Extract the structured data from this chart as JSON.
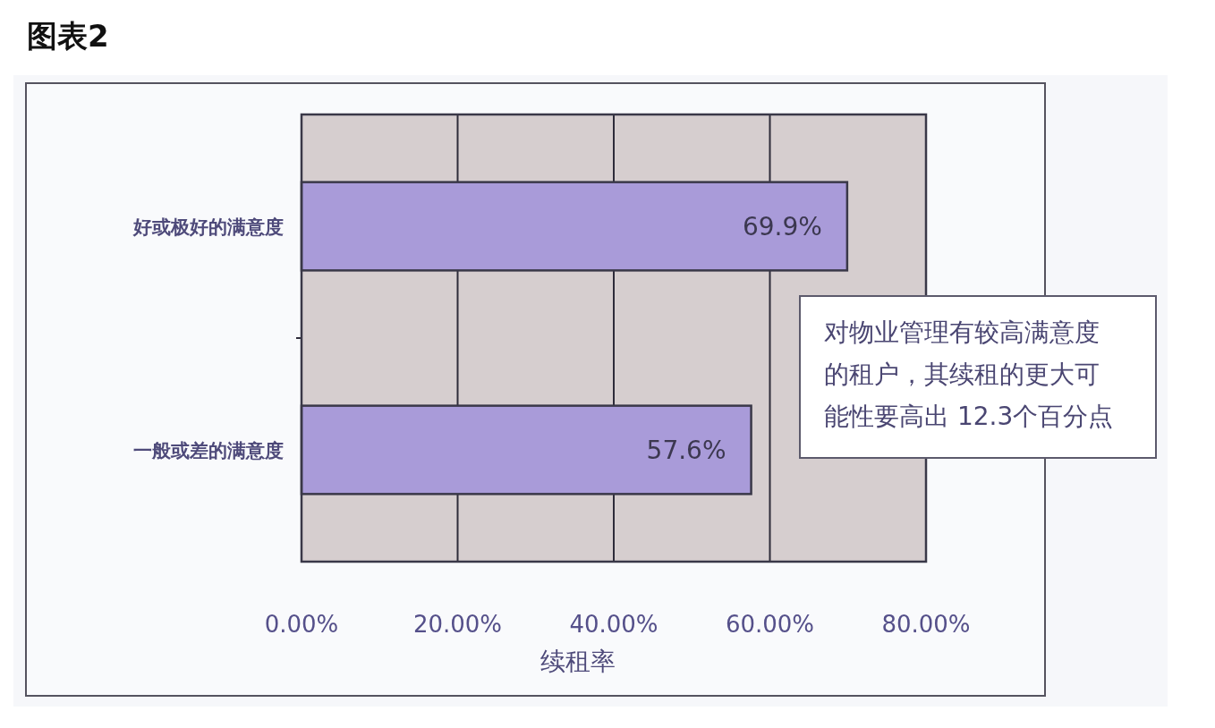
{
  "chart_data": {
    "type": "bar",
    "orientation": "horizontal",
    "title": "图表2",
    "xlabel": "续租率",
    "categories": [
      "好或极好的满意度",
      "一般或差的满意度"
    ],
    "values": [
      69.9,
      57.6
    ],
    "value_labels": [
      "69.9%",
      "57.6%"
    ],
    "color": "#a99bd9",
    "xlim": [
      0,
      80
    ],
    "xticks": [
      {
        "value": 0,
        "label": "0.00%"
      },
      {
        "value": 20,
        "label": "20.00%"
      },
      {
        "value": 40,
        "label": "40.00%"
      },
      {
        "value": 60,
        "label": "60.00%"
      },
      {
        "value": 80,
        "label": "80.00%"
      }
    ],
    "grid": "x",
    "annotations": [
      "对物业管理有较高满意度的租户，其续租的更大可能性要高出 12.3个百分点"
    ]
  }
}
